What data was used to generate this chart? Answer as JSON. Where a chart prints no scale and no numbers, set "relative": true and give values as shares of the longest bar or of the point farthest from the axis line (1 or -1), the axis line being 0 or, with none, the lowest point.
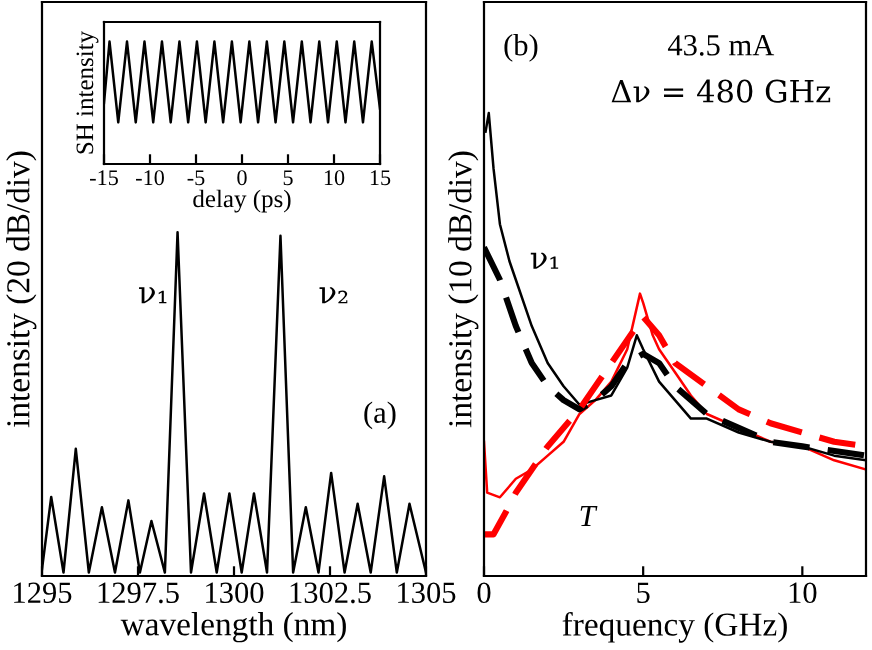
{
  "chart_data": [
    {
      "type": "line",
      "relative": true,
      "xlabel": "wavelength (nm)",
      "ylabel": "intensity (20 dB/div)",
      "xlim": [
        1295,
        1305
      ],
      "xticks": [
        1295,
        1297.5,
        1300,
        1302.5,
        1305
      ],
      "grid": false,
      "legend": false,
      "x": [
        1295.0,
        1295.24,
        1295.56,
        1295.88,
        1296.22,
        1296.56,
        1296.9,
        1297.25,
        1297.55,
        1297.85,
        1298.2,
        1298.53,
        1298.88,
        1299.22,
        1299.55,
        1299.88,
        1300.2,
        1300.52,
        1300.86,
        1301.21,
        1301.54,
        1301.87,
        1302.2,
        1302.53,
        1302.88,
        1303.22,
        1303.56,
        1303.91,
        1304.24,
        1304.57,
        1305.0
      ],
      "series": [
        {
          "color": "#000000",
          "line_style": "solid",
          "values": [
            0.02,
            0.23,
            0.01,
            0.37,
            0.01,
            0.2,
            0.01,
            0.22,
            0.01,
            0.16,
            0.01,
            1.0,
            0.01,
            0.24,
            0.01,
            0.24,
            0.01,
            0.24,
            0.01,
            0.99,
            0.01,
            0.2,
            0.01,
            0.3,
            0.01,
            0.21,
            0.01,
            0.29,
            0.01,
            0.21,
            0.01
          ]
        }
      ],
      "annotations": [
        "ν₁",
        "ν₂",
        "(a)"
      ]
    },
    {
      "type": "line",
      "relative": true,
      "xlabel": "delay (ps)",
      "ylabel": "SH intensity",
      "xlim": [
        -15,
        15
      ],
      "xticks": [
        -15,
        -10,
        -5,
        0,
        5,
        10,
        15
      ],
      "grid": false,
      "legend": false,
      "x": [
        -15,
        -14.4,
        -13.45,
        -12.5,
        -11.55,
        -10.6,
        -9.65,
        -8.7,
        -7.75,
        -6.8,
        -5.85,
        -4.9,
        -3.95,
        -3.0,
        -2.05,
        -1.1,
        -0.15,
        0.8,
        1.75,
        2.7,
        3.65,
        4.6,
        5.55,
        6.5,
        7.45,
        8.4,
        9.35,
        10.3,
        11.25,
        12.2,
        13.15,
        14.1,
        15
      ],
      "series": [
        {
          "color": "#000000",
          "line_style": "solid",
          "values": [
            0.5,
            1,
            0.34,
            1,
            0.34,
            1,
            0.34,
            1,
            0.34,
            1,
            0.34,
            1,
            0.34,
            1,
            0.34,
            1,
            0.34,
            1,
            0.34,
            1,
            0.34,
            1,
            0.34,
            1,
            0.34,
            1,
            0.34,
            1,
            0.34,
            1,
            0.34,
            1,
            0.45
          ]
        }
      ]
    },
    {
      "type": "line",
      "relative": true,
      "xlabel": "frequency (GHz)",
      "ylabel": "intensity (10 dB/div)",
      "xlim": [
        0,
        12
      ],
      "xticks": [
        0,
        5,
        10
      ],
      "grid": false,
      "legend": false,
      "series": [
        {
          "color": "#ff0000",
          "line_style": "solid",
          "x": [
            0,
            0.1,
            0.5,
            1,
            1.5,
            2,
            2.5,
            3,
            3.5,
            4,
            4.5,
            4.9,
            5.0,
            5.3,
            5.5,
            6,
            6.5,
            7,
            8,
            9,
            10,
            11,
            12
          ],
          "values": [
            0.29,
            0.18,
            0.17,
            0.21,
            0.23,
            0.26,
            0.29,
            0.35,
            0.38,
            0.42,
            0.49,
            0.61,
            0.59,
            0.52,
            0.49,
            0.44,
            0.39,
            0.35,
            0.32,
            0.29,
            0.28,
            0.25,
            0.23
          ]
        },
        {
          "color": "#000000",
          "line_style": "solid",
          "x": [
            0.05,
            0.15,
            0.3,
            0.5,
            0.8,
            1,
            1.5,
            2,
            2.5,
            3,
            3.5,
            4,
            4.5,
            4.8,
            5,
            5.5,
            6,
            6.5,
            7,
            8,
            9,
            10,
            11,
            12
          ],
          "values": [
            0.96,
            1.0,
            0.88,
            0.76,
            0.68,
            0.64,
            0.54,
            0.46,
            0.41,
            0.37,
            0.38,
            0.39,
            0.45,
            0.52,
            0.49,
            0.42,
            0.38,
            0.34,
            0.34,
            0.31,
            0.29,
            0.28,
            0.26,
            0.25
          ]
        },
        {
          "color": "#000000",
          "line_style": "dashed",
          "x": [
            0,
            0.5,
            1,
            1.5,
            2,
            2.5,
            3,
            3.5,
            4,
            4.5,
            5,
            5.5,
            6,
            7,
            8,
            9,
            10,
            12
          ],
          "values": [
            0.71,
            0.64,
            0.54,
            0.46,
            0.41,
            0.38,
            0.36,
            0.38,
            0.41,
            0.46,
            0.48,
            0.46,
            0.41,
            0.35,
            0.32,
            0.29,
            0.28,
            0.26
          ]
        },
        {
          "color": "#ff0000",
          "line_style": "dashed",
          "x": [
            0,
            0.3,
            0.7,
            1,
            2,
            3,
            4,
            4.5,
            5,
            5.5,
            6,
            7,
            8,
            9,
            10,
            11,
            12
          ],
          "values": [
            0.09,
            0.09,
            0.14,
            0.18,
            0.28,
            0.36,
            0.46,
            0.51,
            0.56,
            0.52,
            0.46,
            0.41,
            0.36,
            0.33,
            0.31,
            0.29,
            0.28
          ]
        }
      ],
      "annotations": [
        "(b)",
        "43.5 mA",
        "Δν = 480 GHz",
        "ν₁",
        "T"
      ]
    }
  ]
}
